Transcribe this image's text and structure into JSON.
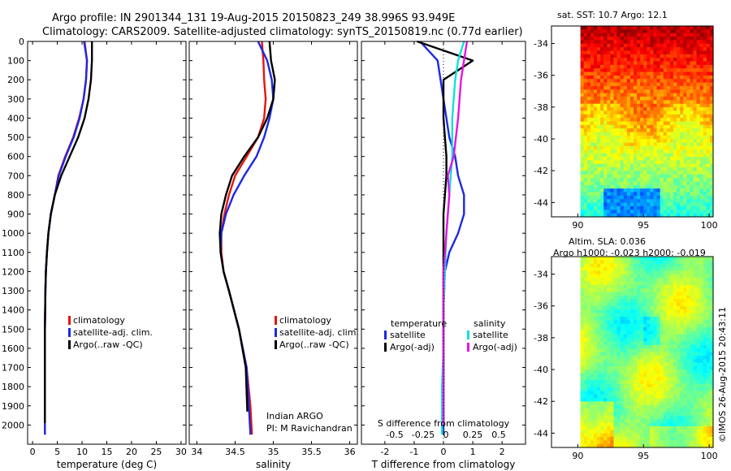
{
  "header": {
    "title_line1": "Argo profile: IN 2901344_131 19-Aug-2015 20150823_249 38.996S 93.949E",
    "title_line2": "Climatology: CARS2009. Satellite-adjusted climatology: synTS_20150819.nc (0.77d earlier)"
  },
  "footer": {
    "credit": "©IMOS 26-Aug-2015 20:43:11",
    "platform_line1": "Indian ARGO",
    "platform_line2": "PI: M Ravichandran"
  },
  "colors": {
    "climatology": "#e8140c",
    "satellite": "#1d28e6",
    "argo": "#000000",
    "sat_salinity": "#12e0e0",
    "argo_salinity": "#e614e6"
  },
  "chart_data": [
    {
      "type": "line",
      "id": "temperature",
      "xlabel": "temperature (deg C)",
      "ylim": [
        2100,
        0
      ],
      "yticks": [
        0,
        100,
        200,
        300,
        400,
        500,
        600,
        700,
        800,
        900,
        1000,
        1100,
        1200,
        1300,
        1400,
        1500,
        1600,
        1700,
        1800,
        1900,
        2000
      ],
      "xlim": [
        -1,
        31
      ],
      "xticks": [
        0,
        5,
        10,
        15,
        20,
        25,
        30
      ],
      "legend": [
        "climatology",
        "satellite-adj. clim.",
        "Argo(..raw -QC)"
      ],
      "series": [
        {
          "key": "climatology",
          "x": [
            10.5,
            11,
            10.8,
            10.3,
            9.4,
            8.2,
            6.6,
            5.2,
            4.5,
            3.7,
            3.2,
            2.9,
            2.7,
            2.6,
            2.5,
            2.5,
            2.5
          ],
          "y": [
            0,
            100,
            200,
            300,
            400,
            500,
            600,
            700,
            800,
            900,
            1000,
            1100,
            1200,
            1300,
            1500,
            1800,
            2050
          ]
        },
        {
          "key": "satellite",
          "x": [
            10.4,
            11,
            10.8,
            10.3,
            9.5,
            8.3,
            6.7,
            5.3,
            4.5,
            3.7,
            3.2,
            2.9,
            2.7,
            2.6,
            2.5,
            2.5,
            2.5
          ],
          "y": [
            0,
            100,
            200,
            300,
            400,
            500,
            600,
            700,
            800,
            900,
            1000,
            1100,
            1200,
            1300,
            1500,
            1800,
            2050
          ]
        },
        {
          "key": "argo",
          "x": [
            12,
            12,
            11.8,
            11.3,
            10.5,
            9.2,
            7.5,
            5.8,
            4.5,
            3.7,
            3.2,
            2.9,
            2.7,
            2.6,
            2.5,
            2.5,
            2.5
          ],
          "y": [
            0,
            100,
            200,
            300,
            400,
            500,
            600,
            700,
            800,
            900,
            1000,
            1100,
            1200,
            1300,
            1500,
            1800,
            1990
          ]
        }
      ]
    },
    {
      "type": "line",
      "id": "salinity",
      "xlabel": "salinity",
      "ylim": [
        2100,
        0
      ],
      "xlim": [
        33.9,
        36.1
      ],
      "xticks": [
        34,
        34.5,
        35,
        35.5,
        36
      ],
      "legend": [
        "climatology",
        "satellite-adj. clim.",
        "Argo(..raw -QC)"
      ],
      "series": [
        {
          "key": "climatology",
          "x": [
            34.85,
            34.87,
            34.88,
            34.9,
            34.88,
            34.8,
            34.65,
            34.5,
            34.42,
            34.36,
            34.32,
            34.32,
            34.35,
            34.42,
            34.55,
            34.65,
            34.7,
            34.72
          ],
          "y": [
            0,
            100,
            200,
            300,
            400,
            500,
            600,
            700,
            800,
            900,
            1000,
            1100,
            1200,
            1300,
            1500,
            1700,
            1900,
            2050
          ]
        },
        {
          "key": "satellite",
          "x": [
            34.8,
            34.92,
            34.98,
            35.0,
            34.95,
            34.88,
            34.78,
            34.62,
            34.48,
            34.38,
            34.32,
            34.31,
            34.35,
            34.42,
            34.55,
            34.65,
            34.68,
            34.7
          ],
          "y": [
            0,
            100,
            200,
            300,
            400,
            500,
            600,
            700,
            800,
            900,
            1000,
            1100,
            1200,
            1300,
            1500,
            1700,
            1900,
            2050
          ]
        },
        {
          "key": "argo",
          "x": [
            34.95,
            34.97,
            35.02,
            35.0,
            34.92,
            34.8,
            34.62,
            34.46,
            34.38,
            34.32,
            34.3,
            34.31,
            34.35,
            34.42,
            34.55,
            34.64,
            34.66
          ],
          "y": [
            0,
            100,
            200,
            300,
            400,
            500,
            600,
            700,
            800,
            900,
            1000,
            1100,
            1200,
            1300,
            1500,
            1700,
            1930
          ]
        }
      ]
    },
    {
      "type": "line",
      "id": "difference",
      "xlabel": "T difference from climatology",
      "xlabel_top": "S difference from climatology",
      "ylim": [
        2100,
        0
      ],
      "xlim": [
        -2.8,
        2.8
      ],
      "xticks": [
        -2,
        -1,
        0,
        1,
        2
      ],
      "xticks_top": [
        "-0.5",
        "-0.25",
        "0",
        "0.25",
        "0.5"
      ],
      "legend_headers": [
        "temperature",
        "salinity"
      ],
      "legend": [
        "satellite",
        "Argo(-adj)",
        "satellite",
        "Argo(-adj)"
      ],
      "series": [
        {
          "key": "satellite",
          "x": [
            -0.8,
            -0.2,
            -0.1,
            0.0,
            0.1,
            0.2,
            0.4,
            0.5,
            0.7,
            0.7,
            0.5,
            0.2,
            0.05,
            0.0,
            0.0,
            0.0
          ],
          "y": [
            0,
            100,
            200,
            300,
            400,
            500,
            600,
            700,
            800,
            900,
            1000,
            1100,
            1200,
            1400,
            1700,
            2050
          ]
        },
        {
          "key": "argo",
          "x": [
            -0.9,
            1.0,
            0.0,
            0.0,
            0.05,
            0.1,
            0.1,
            0.05,
            0.0,
            0.0,
            0.0,
            0.0,
            0.0
          ],
          "y": [
            0,
            100,
            200,
            400,
            500,
            600,
            700,
            800,
            900,
            1000,
            1200,
            1600,
            2000
          ]
        },
        {
          "key": "sat_salinity",
          "x": [
            0.7,
            0.5,
            0.4,
            0.35,
            0.3,
            0.3,
            0.3,
            0.2,
            0.1,
            0.05,
            0.0,
            0.0,
            -0.05,
            -0.05
          ],
          "y": [
            0,
            100,
            200,
            300,
            400,
            500,
            600,
            800,
            1000,
            1200,
            1400,
            1600,
            1800,
            2050
          ]
        },
        {
          "key": "argo_salinity",
          "x": [
            0.8,
            0.7,
            0.6,
            0.5,
            0.35,
            0.15,
            0.2,
            0.1,
            0.0,
            0.0,
            0.0,
            0.0
          ],
          "y": [
            0,
            100,
            200,
            400,
            600,
            700,
            800,
            1000,
            1200,
            1400,
            1700,
            2000
          ]
        }
      ]
    },
    {
      "type": "heatmap",
      "id": "sst_map",
      "title": "sat. SST: 10.7  Argo: 12.1",
      "xticks": [
        90,
        95,
        100
      ],
      "yticks": [
        -34,
        -36,
        -38,
        -40,
        -42,
        -44
      ],
      "xlim": [
        88,
        100.3
      ],
      "ylim": [
        -44.9,
        -32.9
      ]
    },
    {
      "type": "heatmap",
      "id": "sla_map",
      "title_line1": "Altim. SLA: 0.036",
      "title_line2": "Argo h1000: -0.023  h2000: -0.019",
      "xticks": [
        90,
        95,
        100
      ],
      "yticks": [
        -34,
        -36,
        -38,
        -40,
        -42,
        -44
      ],
      "xlim": [
        88,
        100.3
      ],
      "ylim": [
        -44.9,
        -32.9
      ]
    }
  ]
}
